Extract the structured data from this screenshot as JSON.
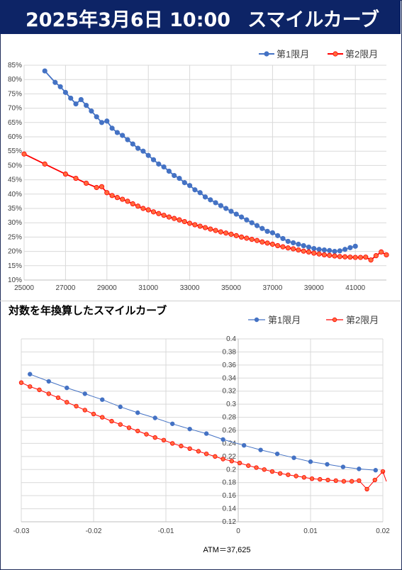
{
  "header": {
    "date": "2025年3月6日 10:00",
    "title": "スマイルカーブ"
  },
  "colors": {
    "header_bg": "#0d2466",
    "series1": "#4472c4",
    "series2": "#ff0000",
    "series2_fill": "#ff6a3d"
  },
  "chart_data": [
    {
      "type": "line",
      "title": "",
      "legend_position": "top-right",
      "grid": true,
      "xlim": [
        25000,
        42500
      ],
      "ylim": [
        10,
        85
      ],
      "x_ticks": [
        "25000",
        "27000",
        "29000",
        "31000",
        "33000",
        "35000",
        "37000",
        "39000",
        "41000"
      ],
      "y_ticks": [
        "10%",
        "15%",
        "20%",
        "25%",
        "30%",
        "35%",
        "40%",
        "45%",
        "50%",
        "55%",
        "60%",
        "65%",
        "70%",
        "75%",
        "80%",
        "85%"
      ],
      "series": [
        {
          "name": "第1限月",
          "x": [
            26000,
            26500,
            26750,
            27000,
            27250,
            27500,
            27750,
            28000,
            28250,
            28500,
            28750,
            29000,
            29250,
            29500,
            29750,
            30000,
            30250,
            30500,
            30750,
            31000,
            31250,
            31500,
            31750,
            32000,
            32250,
            32500,
            32750,
            33000,
            33250,
            33500,
            33750,
            34000,
            34250,
            34500,
            34750,
            35000,
            35250,
            35500,
            35750,
            36000,
            36250,
            36500,
            36750,
            37000,
            37250,
            37500,
            37750,
            38000,
            38250,
            38500,
            38750,
            39000,
            39250,
            39500,
            39750,
            40000,
            40250,
            40500,
            40750,
            41000
          ],
          "y": [
            83.0,
            79.0,
            77.5,
            75.5,
            73.5,
            71.5,
            73.0,
            71.0,
            69.0,
            67.0,
            65.0,
            65.5,
            63.0,
            61.5,
            60.5,
            59.0,
            57.5,
            56.0,
            55.0,
            53.5,
            52.0,
            50.5,
            49.5,
            48.0,
            46.5,
            45.5,
            44.0,
            43.0,
            41.5,
            40.5,
            39.0,
            38.0,
            37.0,
            36.0,
            35.0,
            34.0,
            33.0,
            32.0,
            31.0,
            30.0,
            29.0,
            28.0,
            27.0,
            26.5,
            25.5,
            24.5,
            23.5,
            23.0,
            22.5,
            22.0,
            21.5,
            21.0,
            20.7,
            20.5,
            20.3,
            20.0,
            20.2,
            20.7,
            21.3,
            21.8
          ]
        },
        {
          "name": "第2限月",
          "x": [
            25000,
            26000,
            27000,
            27500,
            28000,
            28500,
            28750,
            29000,
            29250,
            29500,
            29750,
            30000,
            30250,
            30500,
            30750,
            31000,
            31250,
            31500,
            31750,
            32000,
            32250,
            32500,
            32750,
            33000,
            33250,
            33500,
            33750,
            34000,
            34250,
            34500,
            34750,
            35000,
            35250,
            35500,
            35750,
            36000,
            36250,
            36500,
            36750,
            37000,
            37250,
            37500,
            37750,
            38000,
            38250,
            38500,
            38750,
            39000,
            39250,
            39500,
            39750,
            40000,
            40250,
            40500,
            40750,
            41000,
            41250,
            41500,
            41750,
            42000,
            42250,
            42500
          ],
          "y": [
            54.0,
            50.5,
            47.0,
            45.5,
            43.8,
            42.3,
            42.6,
            40.5,
            39.5,
            38.8,
            38.2,
            37.5,
            36.6,
            35.8,
            35.0,
            34.5,
            33.8,
            33.2,
            32.6,
            32.0,
            31.5,
            31.0,
            30.4,
            29.8,
            29.3,
            28.8,
            28.3,
            27.8,
            27.3,
            26.8,
            26.4,
            26.0,
            25.5,
            25.0,
            24.6,
            24.2,
            23.8,
            23.3,
            22.9,
            22.5,
            22.0,
            21.6,
            21.2,
            20.9,
            20.5,
            20.1,
            19.8,
            19.4,
            19.1,
            18.8,
            18.6,
            18.4,
            18.2,
            18.1,
            18.0,
            17.9,
            17.9,
            18.0,
            17.0,
            18.5,
            19.8,
            18.8
          ]
        }
      ]
    },
    {
      "type": "line",
      "title": "対数を年換算したスマイルカーブ",
      "xlabel": "ATM＝37,625",
      "legend_position": "top-right",
      "grid": true,
      "xlim": [
        -0.03,
        0.02
      ],
      "ylim": [
        0.12,
        0.4
      ],
      "x_ticks": [
        "-0.03",
        "-0.02",
        "-0.01",
        "0",
        "0.01",
        "0.02"
      ],
      "y_ticks": [
        "0.12",
        "0.14",
        "0.16",
        "0.18",
        "0.2",
        "0.22",
        "0.24",
        "0.26",
        "0.28",
        "0.3",
        "0.32",
        "0.34",
        "0.36",
        "0.38",
        "0.4"
      ],
      "series": [
        {
          "name": "第1限月",
          "x": [
            -0.0288,
            -0.0262,
            -0.0237,
            -0.0212,
            -0.0188,
            -0.0163,
            -0.0139,
            -0.0115,
            -0.0091,
            -0.0067,
            -0.0044,
            -0.0021,
            0.0008,
            0.0031,
            0.0054,
            0.0077,
            0.01,
            0.0123,
            0.0145,
            0.0167,
            0.019
          ],
          "y": [
            0.346,
            0.335,
            0.325,
            0.316,
            0.307,
            0.296,
            0.287,
            0.279,
            0.27,
            0.262,
            0.255,
            0.246,
            0.237,
            0.23,
            0.224,
            0.218,
            0.212,
            0.208,
            0.204,
            0.201,
            0.199
          ]
        },
        {
          "name": "第2限月",
          "x": [
            -0.03,
            -0.0288,
            -0.0275,
            -0.0262,
            -0.0249,
            -0.0237,
            -0.0224,
            -0.0212,
            -0.02,
            -0.0188,
            -0.0175,
            -0.0163,
            -0.0151,
            -0.0139,
            -0.0127,
            -0.0115,
            -0.0103,
            -0.0091,
            -0.0079,
            -0.0067,
            -0.0055,
            -0.0044,
            -0.0032,
            -0.0021,
            -0.0009,
            0.0002,
            0.0014,
            0.0025,
            0.0036,
            0.0047,
            0.0058,
            0.0069,
            0.008,
            0.0091,
            0.0102,
            0.0113,
            0.0124,
            0.0135,
            0.0146,
            0.0157,
            0.0167,
            0.0178,
            0.0189,
            0.02
          ],
          "y": [
            0.333,
            0.327,
            0.322,
            0.316,
            0.31,
            0.303,
            0.297,
            0.291,
            0.285,
            0.28,
            0.274,
            0.269,
            0.264,
            0.259,
            0.254,
            0.249,
            0.245,
            0.24,
            0.236,
            0.232,
            0.228,
            0.224,
            0.22,
            0.216,
            0.213,
            0.21,
            0.206,
            0.203,
            0.2,
            0.197,
            0.194,
            0.192,
            0.19,
            0.188,
            0.186,
            0.185,
            0.184,
            0.183,
            0.182,
            0.182,
            0.183,
            0.17,
            0.184,
            0.197
          ]
        }
      ]
    }
  ]
}
